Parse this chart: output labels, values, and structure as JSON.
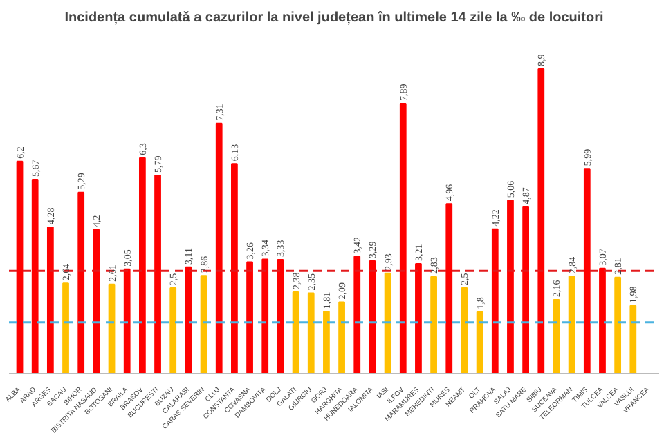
{
  "chart_data": {
    "type": "bar",
    "title": "Incidența cumulată a cazurilor la nivel județean în ultimele 14 zile la ‰ de locuitori",
    "categories": [
      "ALBA",
      "ARAD",
      "ARGES",
      "BACAU",
      "BIHOR",
      "BISTRITA NASAUD",
      "BOTOSANI",
      "BRAILA",
      "BRASOV",
      "BUCURESTI",
      "BUZAU",
      "CALARASI",
      "CARAS SEVERIN",
      "CLUJ",
      "CONSTANTA",
      "COVASNA",
      "DAMBOVITA",
      "DOLJ",
      "GALATI",
      "GIURGIU",
      "GORJ",
      "HARGHITA",
      "HUNEDOARA",
      "IALOMITA",
      "IASI",
      "ILFOV",
      "MARAMURES",
      "MEHEDINTI",
      "MURES",
      "NEAMT",
      "OLT",
      "PRAHOVA",
      "SALAJ",
      "SATU MARE",
      "SIBIU",
      "SUCEAVA",
      "TELEORMAN",
      "TIMIS",
      "TULCEA",
      "VALCEA",
      "VASLUI",
      "VRANCEA"
    ],
    "values": [
      6.2,
      5.67,
      4.28,
      2.64,
      5.29,
      4.2,
      2.61,
      3.05,
      6.3,
      5.79,
      2.5,
      3.11,
      2.86,
      7.31,
      6.13,
      3.26,
      3.34,
      3.33,
      2.38,
      2.35,
      1.81,
      2.09,
      3.42,
      3.29,
      2.93,
      7.89,
      3.21,
      2.83,
      4.96,
      2.5,
      1.8,
      4.22,
      5.06,
      4.87,
      8.9,
      2.16,
      2.84,
      5.99,
      3.07,
      2.81,
      1.98,
      null
    ],
    "value_labels": [
      "6,2",
      "5,67",
      "4,28",
      "2,64",
      "5,29",
      "4,2",
      "2,61",
      "3,05",
      "6,3",
      "5,79",
      "2,5",
      "3,11",
      "2,86",
      "7,31",
      "6,13",
      "3,26",
      "3,34",
      "3,33",
      "2,38",
      "2,35",
      "1,81",
      "2,09",
      "3,42",
      "3,29",
      "2,93",
      "7,89",
      "3,21",
      "2,83",
      "4,96",
      "2,5",
      "1,8",
      "4,22",
      "5,06",
      "4,87",
      "8,9",
      "2,16",
      "2,84",
      "5,99",
      "3,07",
      "2,81",
      "1,98",
      null
    ],
    "colors": [
      "#ff0000",
      "#ff0000",
      "#ff0000",
      "#ffc000",
      "#ff0000",
      "#ff0000",
      "#ffc000",
      "#ff0000",
      "#ff0000",
      "#ff0000",
      "#ffc000",
      "#ff0000",
      "#ffc000",
      "#ff0000",
      "#ff0000",
      "#ff0000",
      "#ff0000",
      "#ff0000",
      "#ffc000",
      "#ffc000",
      "#ffc000",
      "#ffc000",
      "#ff0000",
      "#ff0000",
      "#ffc000",
      "#ff0000",
      "#ff0000",
      "#ffc000",
      "#ff0000",
      "#ffc000",
      "#ffc000",
      "#ff0000",
      "#ff0000",
      "#ff0000",
      "#ff0000",
      "#ffc000",
      "#ffc000",
      "#ff0000",
      "#ff0000",
      "#ffc000",
      "#ffc000",
      "#ffc000"
    ],
    "tick_labels": "x",
    "ref_lines": [
      {
        "axis": "y",
        "value": 3,
        "color": "#e31a1c",
        "line_style": "dashed"
      },
      {
        "axis": "y",
        "value": 1.5,
        "color": "#4bb3e0",
        "line_style": "dashed"
      }
    ]
  }
}
